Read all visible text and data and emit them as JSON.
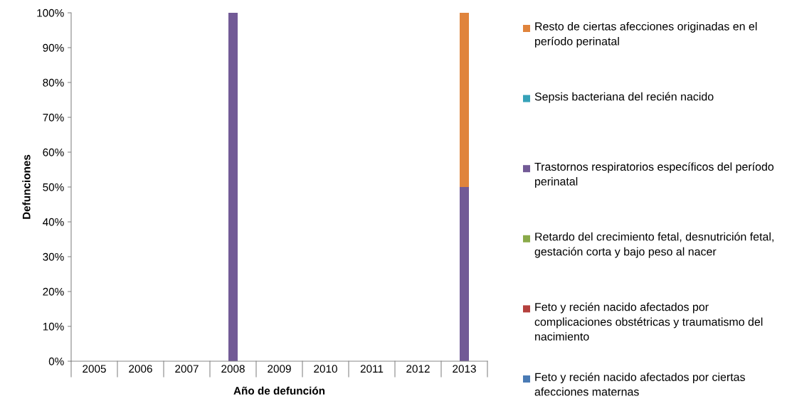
{
  "chart_data": {
    "type": "bar",
    "stacked": true,
    "xlabel": "Año de defunción",
    "ylabel": "Defunciones",
    "categories": [
      "2005",
      "2006",
      "2007",
      "2008",
      "2009",
      "2010",
      "2011",
      "2012",
      "2013"
    ],
    "series": [
      {
        "name": "Feto y recién nacido afectados por ciertas afecciones maternas",
        "color": "#4a7bb5",
        "values": [
          0,
          0,
          0,
          0,
          0,
          0,
          0,
          0,
          0
        ]
      },
      {
        "name": "Feto y recién nacido afectados por complicaciones obstétricas y traumatismo del nacimiento",
        "color": "#b5403d",
        "values": [
          0,
          0,
          0,
          0,
          0,
          0,
          0,
          0,
          0
        ]
      },
      {
        "name": "Retardo del crecimiento fetal, desnutrición fetal, gestación corta y bajo peso al nacer",
        "color": "#8aaa4a",
        "values": [
          0,
          0,
          0,
          0,
          0,
          0,
          0,
          0,
          0
        ]
      },
      {
        "name": "Trastornos respiratorios específicos del período perinatal",
        "color": "#725a96",
        "values": [
          0,
          0,
          0,
          100,
          0,
          0,
          0,
          0,
          50
        ]
      },
      {
        "name": "Sepsis bacteriana del recién nacido",
        "color": "#36a2b8",
        "values": [
          0,
          0,
          0,
          0,
          0,
          0,
          0,
          0,
          0
        ]
      },
      {
        "name": "Resto de ciertas afecciones originadas en el período perinatal",
        "color": "#e0843c",
        "values": [
          0,
          0,
          0,
          0,
          0,
          0,
          0,
          0,
          50
        ]
      }
    ],
    "ylim": [
      0,
      100
    ],
    "yticks": [
      {
        "value": 0,
        "label": "0%"
      },
      {
        "value": 10,
        "label": "10%"
      },
      {
        "value": 20,
        "label": "20%"
      },
      {
        "value": 30,
        "label": "30%"
      },
      {
        "value": 40,
        "label": "40%"
      },
      {
        "value": 50,
        "label": "50%"
      },
      {
        "value": 60,
        "label": "60%"
      },
      {
        "value": 70,
        "label": "70%"
      },
      {
        "value": 80,
        "label": "80%"
      },
      {
        "value": 90,
        "label": "90%"
      },
      {
        "value": 100,
        "label": "100%"
      }
    ],
    "grid": false,
    "legend": "right"
  }
}
